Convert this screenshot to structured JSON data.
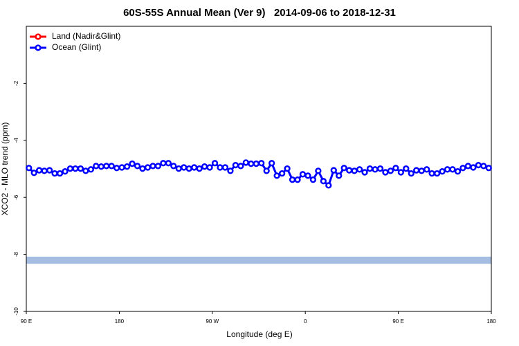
{
  "chart_data": {
    "type": "line",
    "title": "60S-55S Annual Mean (Ver 9)   2014-09-06 to 2018-12-31",
    "xlabel": "Longitude (deg E)",
    "ylabel": "XCO2 - MLO trend (ppm)",
    "xlim": [
      90,
      540
    ],
    "xticks": [
      {
        "value": 90,
        "label": "90 E"
      },
      {
        "value": 180,
        "label": "180"
      },
      {
        "value": 270,
        "label": "90 W"
      },
      {
        "value": 360,
        "label": "0"
      },
      {
        "value": 450,
        "label": "90 E"
      },
      {
        "value": 540,
        "label": "180"
      }
    ],
    "ylim": [
      -10,
      0
    ],
    "yticks": [
      -10,
      -8,
      -6,
      -4,
      -2
    ],
    "legend": "top-left",
    "band": [
      -8.33,
      -8.08
    ],
    "band_color": "#a4bde0",
    "x": [
      92.5,
      97.5,
      102.5,
      107.5,
      112.5,
      117.5,
      122.5,
      127.5,
      132.5,
      137.5,
      142.5,
      147.5,
      152.5,
      157.5,
      162.5,
      167.5,
      172.5,
      177.5,
      182.5,
      187.5,
      192.5,
      197.5,
      202.5,
      207.5,
      212.5,
      217.5,
      222.5,
      227.5,
      232.5,
      237.5,
      242.5,
      247.5,
      252.5,
      257.5,
      262.5,
      267.5,
      272.5,
      277.5,
      282.5,
      287.5,
      292.5,
      297.5,
      302.5,
      307.5,
      312.5,
      317.5,
      322.5,
      327.5,
      332.5,
      337.5,
      342.5,
      347.5,
      352.5,
      357.5,
      362.5,
      367.5,
      372.5,
      377.5,
      382.5,
      387.5,
      392.5,
      397.5,
      402.5,
      407.5,
      412.5,
      417.5,
      422.5,
      427.5,
      432.5,
      437.5,
      442.5,
      447.5,
      452.5,
      457.5,
      462.5,
      467.5,
      472.5,
      477.5,
      482.5,
      487.5,
      492.5,
      497.5,
      502.5,
      507.5,
      512.5,
      517.5,
      522.5,
      527.5,
      532.5,
      537.5
    ],
    "series": [
      {
        "name": "Land (Nadir&Glint)",
        "color": "#ff0000",
        "values": [
          null,
          null,
          null,
          null,
          null,
          null,
          null,
          null,
          null,
          null,
          null,
          null,
          null,
          null,
          null,
          null,
          null,
          null,
          null,
          null,
          null,
          null,
          null,
          null,
          null,
          null,
          null,
          null,
          null,
          null,
          null,
          null,
          null,
          null,
          null,
          null,
          null,
          null,
          null,
          null,
          null,
          null,
          null,
          null,
          null,
          null,
          null,
          null,
          null,
          null,
          null,
          null,
          null,
          null,
          null,
          null,
          null,
          null,
          null,
          null,
          null,
          null,
          null,
          null,
          null,
          null,
          null,
          null,
          null,
          null,
          null,
          null,
          null,
          null,
          null,
          null,
          null,
          null,
          null,
          null,
          null,
          null,
          null,
          null,
          null,
          null,
          null,
          null,
          null,
          null
        ]
      },
      {
        "name": "Ocean (Glint)",
        "color": "#0000ff",
        "values": [
          -4.97,
          -5.14,
          -5.05,
          -5.07,
          -5.05,
          -5.16,
          -5.16,
          -5.09,
          -4.99,
          -4.99,
          -4.99,
          -5.07,
          -5.02,
          -4.9,
          -4.92,
          -4.9,
          -4.9,
          -4.97,
          -4.95,
          -4.92,
          -4.82,
          -4.9,
          -4.99,
          -4.95,
          -4.9,
          -4.9,
          -4.8,
          -4.8,
          -4.9,
          -4.99,
          -4.95,
          -4.99,
          -4.95,
          -4.99,
          -4.92,
          -4.95,
          -4.8,
          -4.95,
          -4.95,
          -5.07,
          -4.87,
          -4.9,
          -4.78,
          -4.82,
          -4.82,
          -4.8,
          -5.07,
          -4.8,
          -5.24,
          -5.16,
          -4.99,
          -5.38,
          -5.38,
          -5.19,
          -5.24,
          -5.38,
          -5.07,
          -5.43,
          -5.58,
          -5.05,
          -5.24,
          -4.97,
          -5.05,
          -5.07,
          -5.02,
          -5.12,
          -4.99,
          -5.02,
          -4.99,
          -5.12,
          -5.07,
          -4.97,
          -5.12,
          -4.99,
          -5.16,
          -5.05,
          -5.07,
          -5.02,
          -5.16,
          -5.16,
          -5.09,
          -5.02,
          -5.02,
          -5.09,
          -4.97,
          -4.9,
          -4.95,
          -4.87,
          -4.9,
          -4.97
        ]
      }
    ]
  }
}
